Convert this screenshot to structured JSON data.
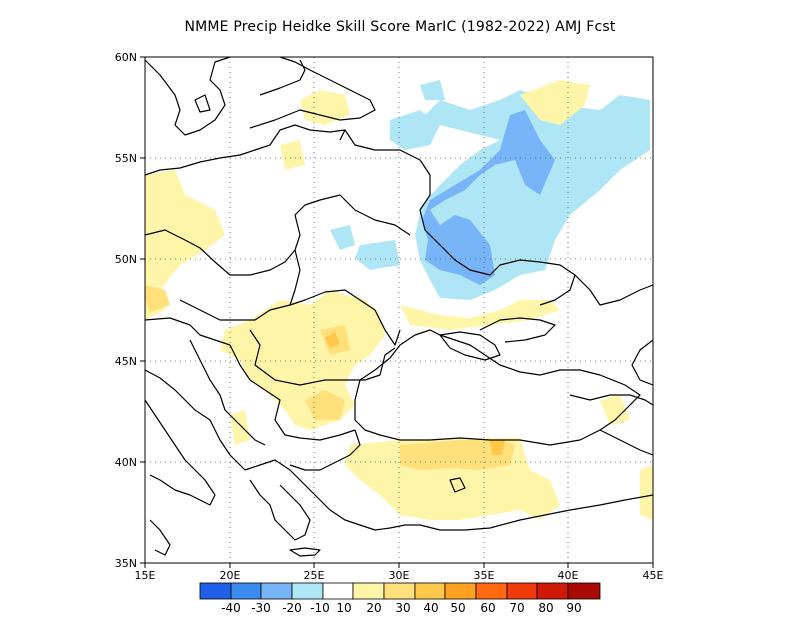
{
  "title": "NMME Precip Heidke Skill Score MarIC (1982-2022) AMJ Fcst",
  "map": {
    "lon_range": [
      15,
      45
    ],
    "lat_range": [
      35,
      60
    ],
    "lon_ticks": [
      "15E",
      "20E",
      "25E",
      "30E",
      "35E",
      "40E",
      "45E"
    ],
    "lat_ticks": [
      "35N",
      "40N",
      "45N",
      "50N",
      "55N",
      "60N"
    ],
    "gridlines": "dotted",
    "coastline_color": "#000000"
  },
  "colorbar": {
    "labels": [
      "-40",
      "-30",
      "-20",
      "-10",
      "10",
      "20",
      "30",
      "40",
      "50",
      "60",
      "70",
      "80",
      "90"
    ],
    "colors": [
      "#2060e8",
      "#3c8cf0",
      "#78b4f8",
      "#aee6f5",
      "#ffffff",
      "#fff5a8",
      "#ffe07a",
      "#ffc84a",
      "#ffa020",
      "#ff6a10",
      "#f03a0a",
      "#d01a08",
      "#a80a04"
    ]
  }
}
